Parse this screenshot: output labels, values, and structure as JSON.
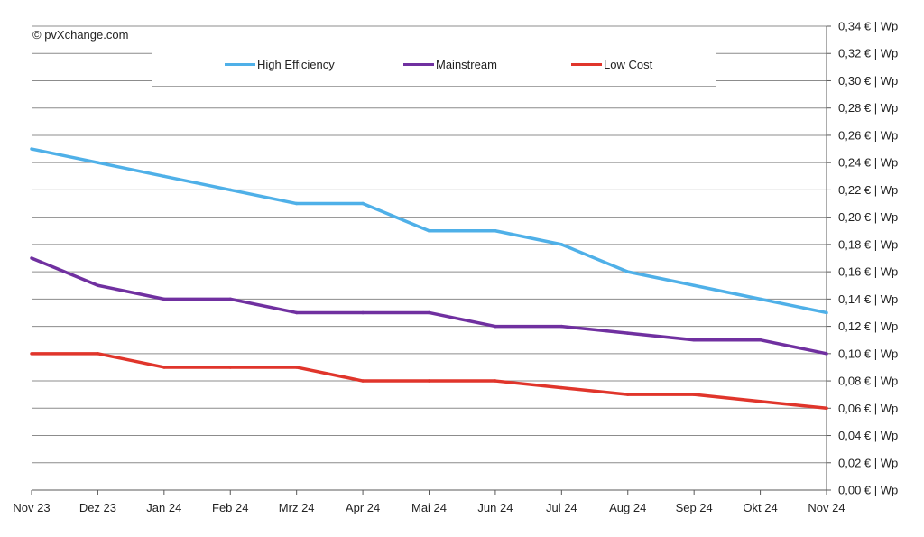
{
  "copyright": "© pvXchange.com",
  "chart_data": {
    "type": "line",
    "categories": [
      "Nov 23",
      "Dez 23",
      "Jan 24",
      "Feb 24",
      "Mrz 24",
      "Apr 24",
      "Mai 24",
      "Jun 24",
      "Jul 24",
      "Aug 24",
      "Sep 24",
      "Okt 24",
      "Nov 24"
    ],
    "y_ticks": [
      "0,00 € | Wp",
      "0,02 € | Wp",
      "0,04 € | Wp",
      "0,06 € | Wp",
      "0,08 € | Wp",
      "0,10 € | Wp",
      "0,12 € | Wp",
      "0,14 € | Wp",
      "0,16 € | Wp",
      "0,18 € | Wp",
      "0,20 € | Wp",
      "0,22 € | Wp",
      "0,24 € | Wp",
      "0,26 € | Wp",
      "0,28 € | Wp",
      "0,30 € | Wp",
      "0,32 € | Wp",
      "0,34 € | Wp"
    ],
    "ylim": [
      0,
      0.34
    ],
    "y_axis_position": "right",
    "grid": true,
    "legend_position": "top",
    "series": [
      {
        "name": "High Efficiency",
        "color": "#4fb0e8",
        "values": [
          0.25,
          0.24,
          0.23,
          0.22,
          0.21,
          0.21,
          0.19,
          0.19,
          0.18,
          0.16,
          0.15,
          0.14,
          0.13
        ]
      },
      {
        "name": "Mainstream",
        "color": "#7030a0",
        "values": [
          0.17,
          0.15,
          0.14,
          0.14,
          0.13,
          0.13,
          0.13,
          0.12,
          0.12,
          0.115,
          0.11,
          0.11,
          0.1
        ]
      },
      {
        "name": "Low Cost",
        "color": "#e0352b",
        "values": [
          0.1,
          0.1,
          0.09,
          0.09,
          0.09,
          0.08,
          0.08,
          0.08,
          0.075,
          0.07,
          0.07,
          0.065,
          0.06
        ]
      }
    ]
  }
}
